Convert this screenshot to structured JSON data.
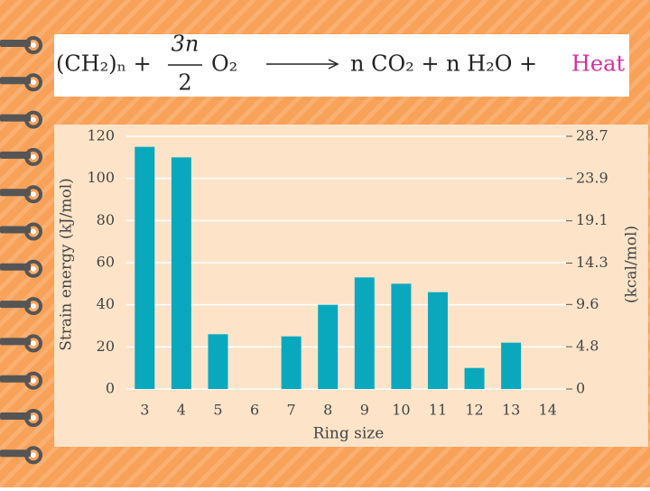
{
  "equation": {
    "reactant": "(CH₂)ₙ +",
    "numerator": "3n",
    "denominator": "2",
    "oxygen": "O₂",
    "products": "n CO₂ + n H₂O +",
    "heat": "Heat"
  },
  "chart_data": {
    "type": "bar",
    "categories": [
      "3",
      "4",
      "5",
      "6",
      "7",
      "8",
      "9",
      "10",
      "11",
      "12",
      "13",
      "14"
    ],
    "values": [
      115,
      110,
      26,
      0,
      25,
      40,
      53,
      50,
      46,
      10,
      22,
      0
    ],
    "color": "#0aa8bd",
    "x_label": "Ring size",
    "y_label": "Strain energy (kJ/mol)",
    "y2_label": "(kcal/mol)",
    "ylim": [
      0,
      120
    ],
    "yticks": [
      0,
      20,
      40,
      60,
      80,
      100,
      120
    ],
    "y2lim": [
      0,
      28.7
    ],
    "y2ticks": [
      0,
      4.8,
      9.6,
      14.3,
      19.1,
      23.9,
      28.7
    ],
    "grid": true
  }
}
